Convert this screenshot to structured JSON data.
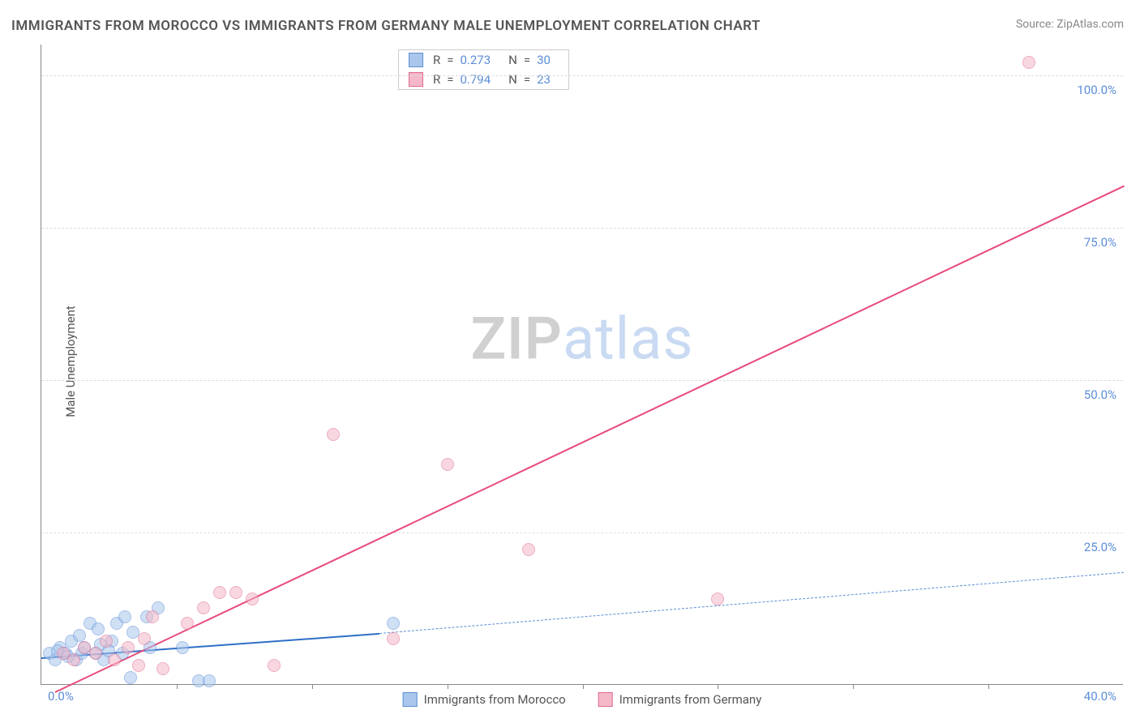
{
  "title": "IMMIGRANTS FROM MOROCCO VS IMMIGRANTS FROM GERMANY MALE UNEMPLOYMENT CORRELATION CHART",
  "source": "Source: ZipAtlas.com",
  "ylabel": "Male Unemployment",
  "watermark": {
    "part1": "ZIP",
    "part2": "atlas"
  },
  "chart": {
    "type": "scatter",
    "xlim": [
      0,
      40
    ],
    "ylim": [
      0,
      105
    ],
    "x_origin_label": "0.0%",
    "x_end_label": "40.0%",
    "ytick_labels": [
      "25.0%",
      "50.0%",
      "75.0%",
      "100.0%"
    ],
    "ytick_values": [
      25,
      50,
      75,
      100
    ],
    "x_minor_step": 5,
    "background_color": "#ffffff",
    "grid_color": "#dddddd",
    "axis_color": "#888888",
    "ytick_color": "#5b8dd6",
    "point_radius": 8,
    "point_opacity": 0.55
  },
  "series": [
    {
      "key": "morocco",
      "label": "Immigrants from Morocco",
      "fill": "#a9c7ec",
      "stroke": "#5b8dd6",
      "R": "0.273",
      "N": "30",
      "trend": {
        "x1": 0,
        "y1": 4.5,
        "x2": 12.5,
        "y2": 8.5,
        "color": "#2f6fc7",
        "style": "solid",
        "width": 2.5
      },
      "trend_ext": {
        "x1": 12.5,
        "y1": 8.5,
        "x2": 40,
        "y2": 18.5,
        "color": "#5b8dd6",
        "style": "dashed",
        "width": 1.5
      },
      "points": [
        {
          "x": 0.3,
          "y": 5
        },
        {
          "x": 0.5,
          "y": 4
        },
        {
          "x": 0.7,
          "y": 6
        },
        {
          "x": 0.9,
          "y": 5
        },
        {
          "x": 1.1,
          "y": 7
        },
        {
          "x": 1.3,
          "y": 4
        },
        {
          "x": 1.4,
          "y": 8
        },
        {
          "x": 1.5,
          "y": 5
        },
        {
          "x": 1.6,
          "y": 6
        },
        {
          "x": 1.8,
          "y": 10
        },
        {
          "x": 2.0,
          "y": 5
        },
        {
          "x": 2.1,
          "y": 9
        },
        {
          "x": 2.3,
          "y": 4
        },
        {
          "x": 2.6,
          "y": 7
        },
        {
          "x": 2.8,
          "y": 10
        },
        {
          "x": 3.0,
          "y": 5
        },
        {
          "x": 3.1,
          "y": 11
        },
        {
          "x": 3.3,
          "y": 1
        },
        {
          "x": 3.4,
          "y": 8.5
        },
        {
          "x": 3.9,
          "y": 11
        },
        {
          "x": 4.0,
          "y": 6
        },
        {
          "x": 4.3,
          "y": 12.5
        },
        {
          "x": 5.2,
          "y": 6
        },
        {
          "x": 5.8,
          "y": 0.5
        },
        {
          "x": 6.2,
          "y": 0.5
        },
        {
          "x": 2.2,
          "y": 6.5
        },
        {
          "x": 1.0,
          "y": 4.5
        },
        {
          "x": 0.6,
          "y": 5.5
        },
        {
          "x": 2.5,
          "y": 5.5
        },
        {
          "x": 13.0,
          "y": 10
        }
      ]
    },
    {
      "key": "germany",
      "label": "Immigrants from Germany",
      "fill": "#f4b8c8",
      "stroke": "#e06b8f",
      "R": "0.794",
      "N": "23",
      "trend": {
        "x1": 0.5,
        "y1": -1,
        "x2": 40,
        "y2": 82,
        "color": "#e84a7a",
        "style": "solid",
        "width": 2
      },
      "points": [
        {
          "x": 0.8,
          "y": 5
        },
        {
          "x": 1.2,
          "y": 4
        },
        {
          "x": 1.6,
          "y": 6
        },
        {
          "x": 2.0,
          "y": 5
        },
        {
          "x": 2.4,
          "y": 7
        },
        {
          "x": 2.7,
          "y": 4
        },
        {
          "x": 3.2,
          "y": 6
        },
        {
          "x": 3.6,
          "y": 3
        },
        {
          "x": 3.8,
          "y": 7.5
        },
        {
          "x": 4.1,
          "y": 11
        },
        {
          "x": 4.5,
          "y": 2.5
        },
        {
          "x": 5.4,
          "y": 10
        },
        {
          "x": 6.0,
          "y": 12.5
        },
        {
          "x": 6.6,
          "y": 15
        },
        {
          "x": 7.2,
          "y": 15
        },
        {
          "x": 7.8,
          "y": 14
        },
        {
          "x": 8.6,
          "y": 3
        },
        {
          "x": 10.8,
          "y": 41
        },
        {
          "x": 13.0,
          "y": 7.5
        },
        {
          "x": 15.0,
          "y": 36
        },
        {
          "x": 18.0,
          "y": 22
        },
        {
          "x": 25.0,
          "y": 14
        },
        {
          "x": 36.5,
          "y": 102
        }
      ]
    }
  ],
  "legend_stats_labels": {
    "R": "R",
    "N": "N",
    "eq": "="
  },
  "legend_bottom": [
    {
      "series": 0
    },
    {
      "series": 1
    }
  ]
}
